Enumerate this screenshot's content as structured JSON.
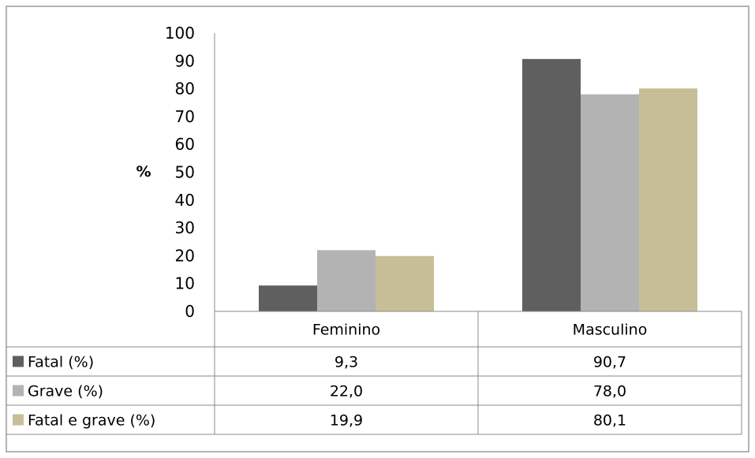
{
  "chart_data": {
    "type": "bar",
    "categories": [
      "Feminino",
      "Masculino"
    ],
    "series": [
      {
        "name": "Fatal (%)",
        "values": [
          9.3,
          90.7
        ],
        "labels": [
          "9,3",
          "90,7"
        ],
        "color": "#5f5f5f"
      },
      {
        "name": "Grave (%)",
        "values": [
          22.0,
          78.0
        ],
        "labels": [
          "22,0",
          "78,0"
        ],
        "color": "#b3b3b3"
      },
      {
        "name": "Fatal e grave (%)",
        "values": [
          19.9,
          80.1
        ],
        "labels": [
          "19,9",
          "80,1"
        ],
        "color": "#c7be98"
      }
    ],
    "ylabel": "%",
    "ylim": [
      0,
      100
    ],
    "yticks": [
      0,
      10,
      20,
      30,
      40,
      50,
      60,
      70,
      80,
      90,
      100
    ],
    "legend": "data-table-left",
    "grid": false
  }
}
